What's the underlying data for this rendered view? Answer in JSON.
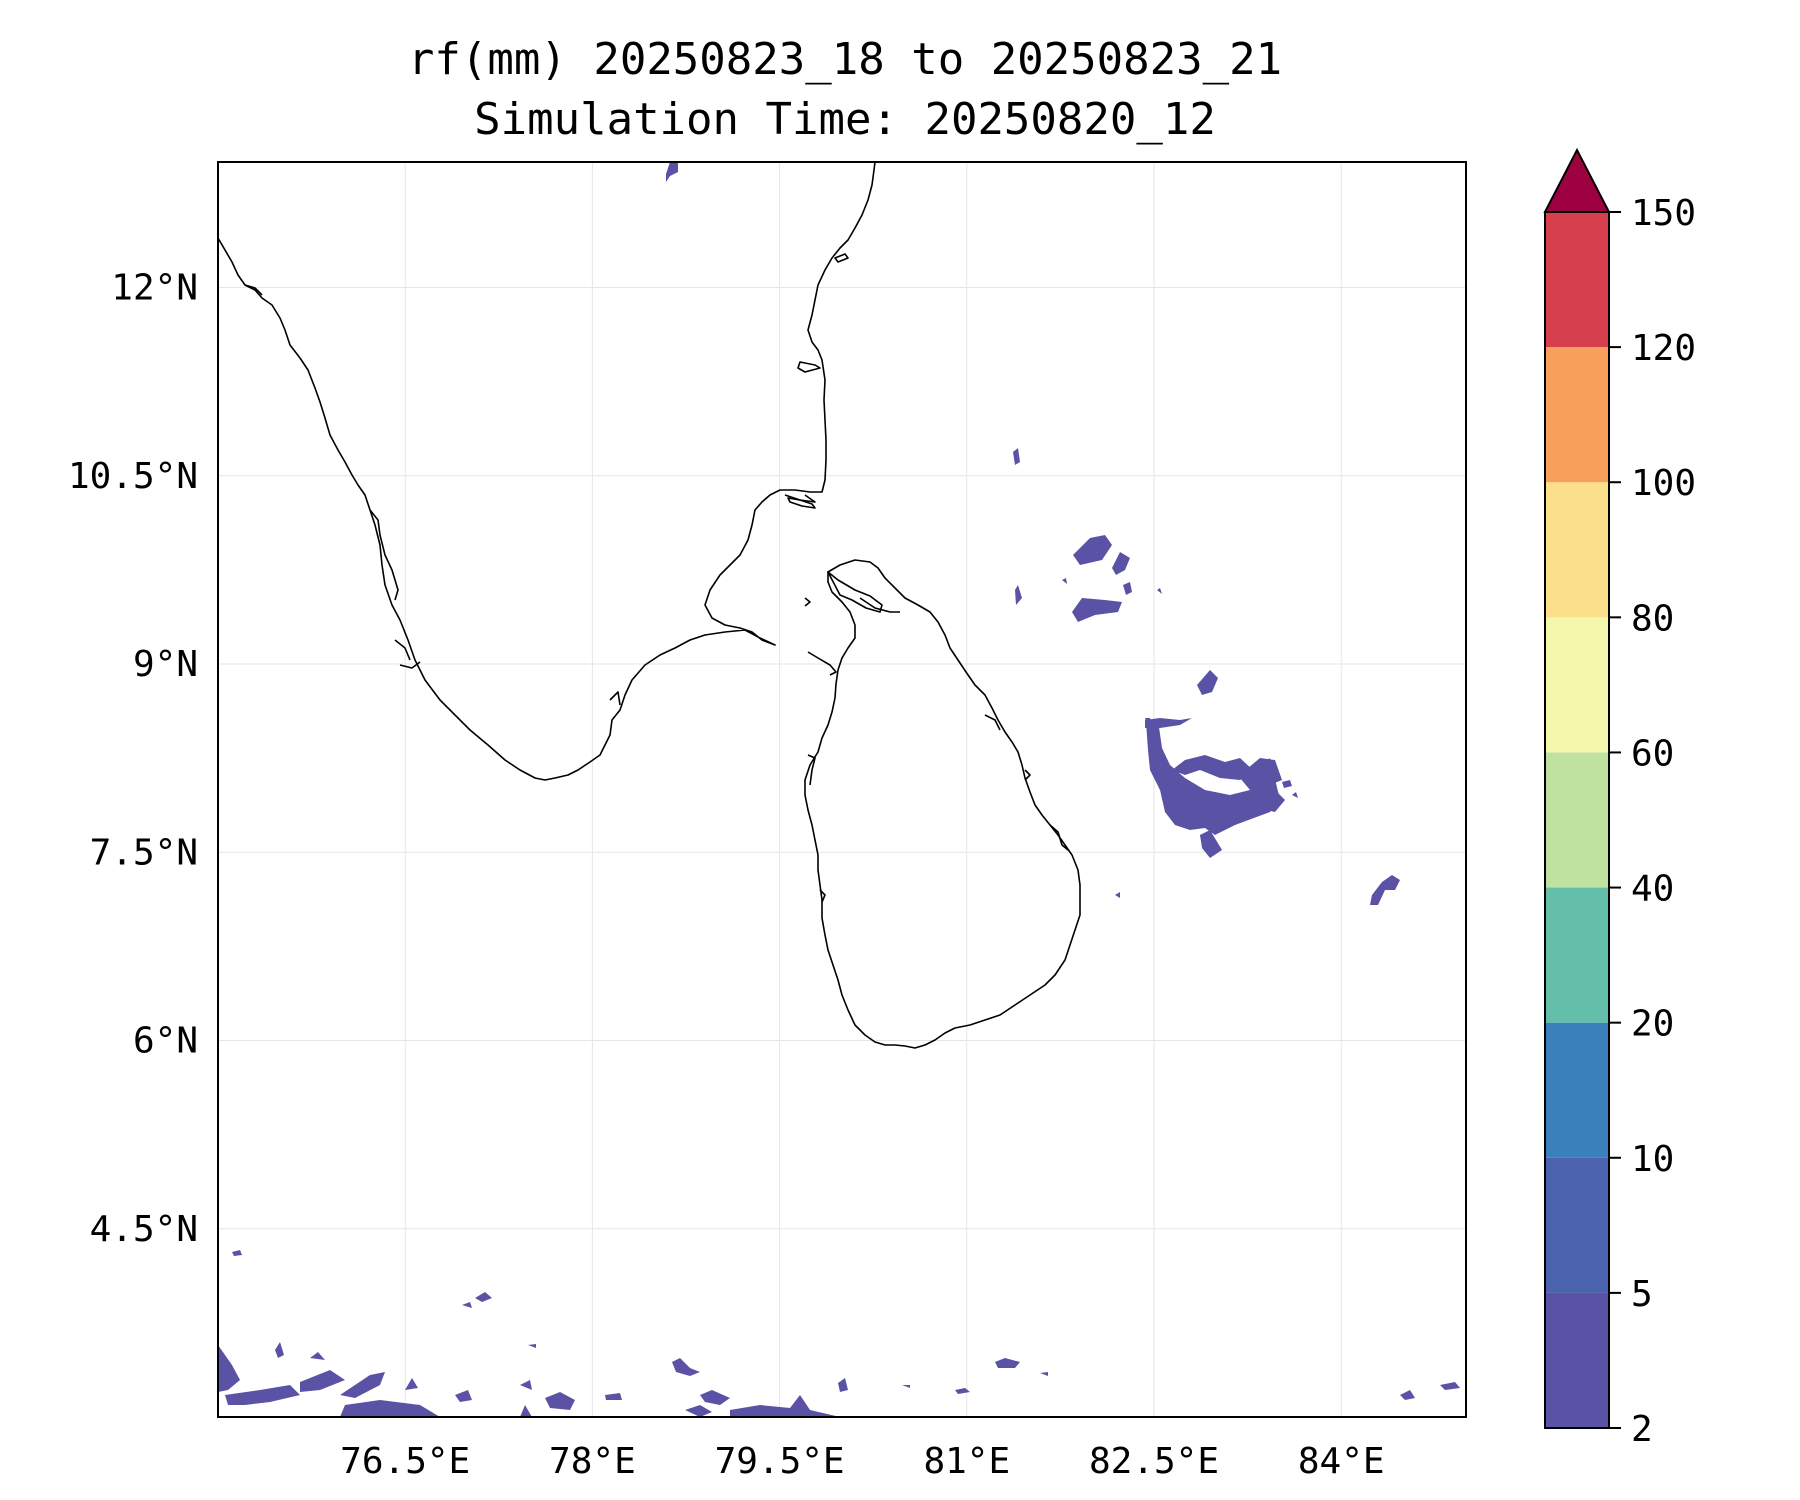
{
  "title": "rf(mm) 20250823_18 to 20250823_21",
  "subtitle": "Simulation Time: 20250820_12",
  "map": {
    "lon_min": 75.0,
    "lon_max": 85.0,
    "lat_min": 3.0,
    "lat_max": 13.0,
    "lon_ticks": [
      76.5,
      78.0,
      79.5,
      81.0,
      82.5,
      84.0
    ],
    "lon_tick_labels": [
      "76.5°E",
      "78°E",
      "79.5°E",
      "81°E",
      "82.5°E",
      "84°E"
    ],
    "lat_ticks": [
      4.5,
      6.0,
      7.5,
      9.0,
      10.5,
      12.0
    ],
    "lat_tick_labels": [
      "4.5°N",
      "6°N",
      "7.5°N",
      "9°N",
      "10.5°N",
      "12°N"
    ],
    "grid": true
  },
  "colorbar": {
    "levels": [
      2,
      5,
      10,
      20,
      40,
      60,
      80,
      100,
      120,
      150
    ],
    "labels": [
      "2",
      "5",
      "10",
      "20",
      "40",
      "60",
      "80",
      "100",
      "120",
      "150"
    ],
    "colors": [
      "#5a52a4",
      "#4b63ae",
      "#3a80bb",
      "#63bfa9",
      "#bfe2a0",
      "#f3f8ad",
      "#fcdf8a",
      "#f99f5c",
      "#d6404e"
    ],
    "extend_color": "#9e0142"
  },
  "rain_color": "#5a52a4"
}
